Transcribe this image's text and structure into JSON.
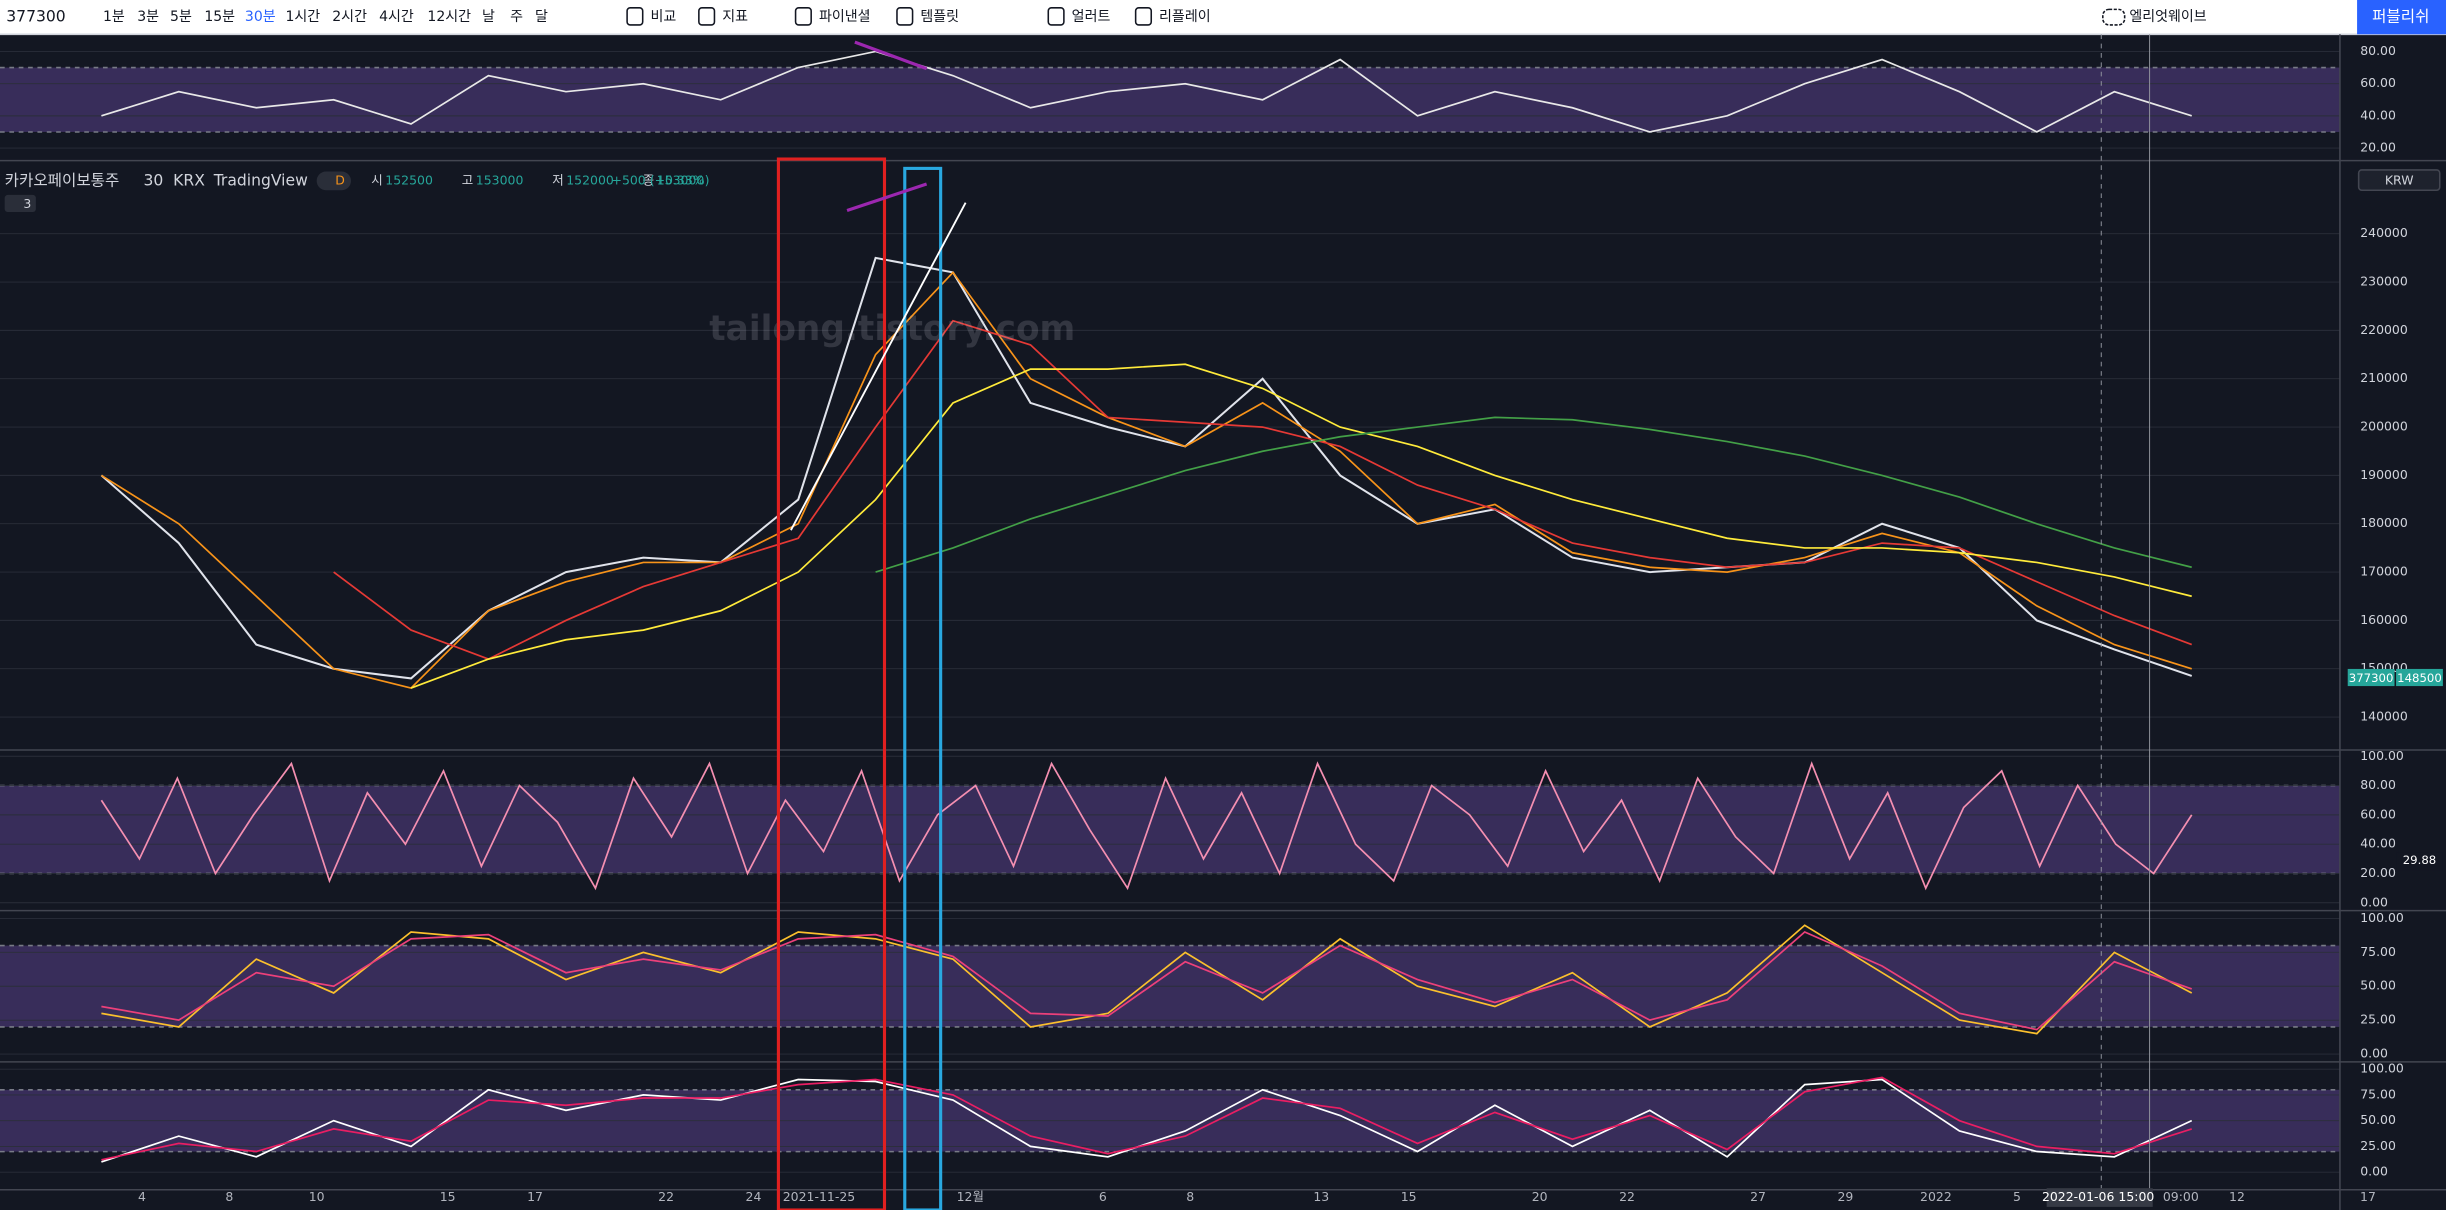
{
  "toolbar": {
    "symbol": "377300",
    "intervals": [
      "1분",
      "3분",
      "5분",
      "15분",
      "30분",
      "1시간",
      "2시간",
      "4시간",
      "12시간",
      "날",
      "주",
      "달"
    ],
    "active_interval": 4,
    "tools": [
      "비교",
      "지표",
      "파이낸셜",
      "템플릿",
      "얼러트",
      "리플레이"
    ],
    "layout": "엘리엇웨이브",
    "publish": "퍼블리쉬"
  },
  "legend": {
    "title": "카카오페이보통주",
    "interval": "30",
    "exchange": "KRX",
    "source": "TradingView",
    "badge": "D",
    "ohlc": [
      {
        "label": "시",
        "value": "152500"
      },
      {
        "label": "고",
        "value": "153000"
      },
      {
        "label": "저",
        "value": "152000"
      },
      {
        "label": "종",
        "value": "153000"
      }
    ],
    "change": "+500 (+0.33%)",
    "collapse": "3"
  },
  "currency": "KRW",
  "watermark": "tailong.tistory.com",
  "price_tags": [
    "377300",
    "148500"
  ],
  "rsi_pane": {
    "ylim": [
      13.2,
      88.7
    ],
    "yticks": [
      {
        "value": 80,
        "label": "80.00"
      },
      {
        "value": 60,
        "label": "60.00"
      },
      {
        "value": 40,
        "label": "40.00"
      },
      {
        "value": 20,
        "label": "20.00"
      }
    ],
    "band": [
      30,
      70
    ],
    "series": [
      {
        "color": "#e8e8e8",
        "values": [
          40,
          55,
          45,
          50,
          35,
          65,
          55,
          60,
          50,
          70,
          80,
          65,
          45,
          55,
          60,
          50,
          75,
          40,
          55,
          45,
          30,
          40,
          60,
          75,
          55,
          30,
          55,
          40
        ]
      }
    ]
  },
  "main_pane": {
    "ylim": [
      133500,
      254800
    ],
    "yticks": [
      240000,
      230000,
      220000,
      210000,
      200000,
      190000,
      180000,
      170000,
      160000,
      150000,
      140000
    ],
    "series": [
      {
        "color": "#e0e3eb",
        "values": [
          190000,
          176000,
          155000,
          150000,
          148000,
          162000,
          170000,
          173000,
          172000,
          185000,
          235000,
          232000,
          205000,
          200000,
          196000,
          210000,
          190000,
          180000,
          183000,
          173000,
          170000,
          171000,
          172000,
          180000,
          175000,
          160000,
          154000,
          148500
        ]
      },
      {
        "color": "#f7931a",
        "values": [
          190000,
          180000,
          165000,
          150000,
          146000,
          162000,
          168000,
          172000,
          172000,
          180000,
          215000,
          232000,
          210000,
          202000,
          196000,
          205000,
          195000,
          180000,
          184000,
          174000,
          171000,
          170000,
          173000,
          178000,
          174000,
          163000,
          155000,
          150000
        ]
      },
      {
        "color": "#e53935",
        "values": [
          null,
          null,
          null,
          170000,
          158000,
          152000,
          160000,
          167000,
          172000,
          177000,
          200000,
          222000,
          217000,
          202000,
          201000,
          200000,
          196000,
          188000,
          183000,
          176000,
          173000,
          171000,
          172000,
          176000,
          175000,
          168000,
          161000,
          155000
        ]
      },
      {
        "color": "#ffeb3b",
        "values": [
          null,
          null,
          null,
          null,
          146000,
          152000,
          156000,
          158000,
          162000,
          170000,
          185000,
          205000,
          212000,
          212000,
          213000,
          208000,
          200000,
          196000,
          190000,
          185000,
          181000,
          177000,
          175000,
          175000,
          174000,
          172000,
          169000,
          165000
        ]
      },
      {
        "color": "#43a047",
        "values": [
          null,
          null,
          null,
          null,
          null,
          null,
          null,
          null,
          null,
          null,
          170000,
          175000,
          181000,
          186000,
          191000,
          195000,
          198000,
          200000,
          202000,
          201500,
          199500,
          197000,
          194000,
          190000,
          185500,
          180000,
          175000,
          171000
        ]
      }
    ]
  },
  "stoch_pane": {
    "ylim": [
      -4.3,
      103.2
    ],
    "yticks": [
      {
        "value": 100,
        "label": "100.00"
      },
      {
        "value": 80,
        "label": "80.00"
      },
      {
        "value": 60,
        "label": "60.00"
      },
      {
        "value": 40,
        "label": "40.00"
      },
      {
        "value": 20,
        "label": "20.00"
      },
      {
        "value": 0,
        "label": "0.00"
      }
    ],
    "band": [
      20,
      80
    ],
    "current": "29.88",
    "series": [
      {
        "color": "#f48fb1",
        "values": [
          70,
          30,
          85,
          20,
          60,
          95,
          15,
          75,
          40,
          90,
          25,
          80,
          55,
          10,
          85,
          45,
          95,
          20,
          70,
          35,
          90,
          15,
          60,
          80,
          25,
          95,
          50,
          10,
          85,
          30,
          75,
          20,
          95,
          40,
          15,
          80,
          60,
          25,
          90,
          35,
          70,
          15,
          85,
          45,
          20,
          95,
          30,
          75,
          10,
          65,
          90,
          25,
          80,
          40,
          20,
          60
        ]
      }
    ]
  },
  "stoch2_pane": {
    "ylim": [
      -4.6,
      104.6
    ],
    "yticks": [
      {
        "value": 100,
        "label": "100.00"
      },
      {
        "value": 75,
        "label": "75.00"
      },
      {
        "value": 50,
        "label": "50.00"
      },
      {
        "value": 25,
        "label": "25.00"
      },
      {
        "value": 0,
        "label": "0.00"
      }
    ],
    "band": [
      20,
      80
    ],
    "series": [
      {
        "color": "#fbc02d",
        "values": [
          30,
          20,
          70,
          45,
          90,
          85,
          55,
          75,
          60,
          90,
          85,
          70,
          20,
          30,
          75,
          40,
          85,
          50,
          35,
          60,
          20,
          45,
          95,
          60,
          25,
          15,
          75,
          45
        ]
      },
      {
        "color": "#ec407a",
        "values": [
          35,
          25,
          60,
          50,
          85,
          88,
          60,
          70,
          62,
          85,
          88,
          72,
          30,
          28,
          68,
          45,
          80,
          55,
          38,
          55,
          25,
          40,
          90,
          65,
          30,
          18,
          68,
          48
        ]
      }
    ]
  },
  "stoch3_pane": {
    "ylim": [
      -15.5,
      105.6
    ],
    "yticks": [
      {
        "value": 100,
        "label": "100.00"
      },
      {
        "value": 75,
        "label": "75.00"
      },
      {
        "value": 50,
        "label": "50.00"
      },
      {
        "value": 25,
        "label": "25.00"
      },
      {
        "value": 0,
        "label": "0.00"
      }
    ],
    "band": [
      20,
      80
    ],
    "series": [
      {
        "color": "#ffffff",
        "values": [
          10,
          35,
          15,
          50,
          25,
          80,
          60,
          75,
          70,
          90,
          88,
          70,
          25,
          15,
          40,
          80,
          55,
          20,
          65,
          25,
          60,
          15,
          85,
          90,
          40,
          20,
          15,
          50
        ]
      },
      {
        "color": "#e91e63",
        "values": [
          12,
          28,
          20,
          42,
          30,
          70,
          65,
          72,
          72,
          85,
          90,
          75,
          35,
          18,
          35,
          72,
          62,
          28,
          58,
          32,
          55,
          22,
          78,
          92,
          50,
          25,
          18,
          42
        ]
      }
    ]
  },
  "date_axis": [
    "4",
    "8",
    "10",
    "15",
    "17",
    "22",
    "24",
    "2021-11-25",
    "12월",
    "6",
    "8",
    "13",
    "15",
    "20",
    "22",
    "27",
    "29",
    "2022",
    "5",
    "2022-01-06  15:00",
    "09:00",
    "12",
    "17"
  ]
}
